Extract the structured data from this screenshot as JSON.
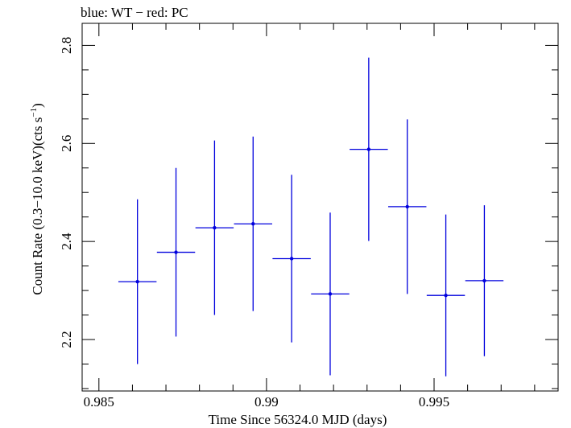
{
  "chart_data": {
    "type": "scatter",
    "title": "blue: WT − red: PC",
    "xlabel": "Time Since 56324.0 MJD (days)",
    "ylabel_main": "Count Rate (0.3−10.0 keV)(cts s",
    "ylabel_sup": "−1",
    "ylabel_end": ")",
    "xlim": [
      0.9845,
      0.9987
    ],
    "ylim": [
      2.095,
      2.845
    ],
    "x_ticks": [
      {
        "value": 0.985,
        "label": "0.985"
      },
      {
        "value": 0.99,
        "label": "0.99"
      },
      {
        "value": 0.995,
        "label": "0.995"
      }
    ],
    "x_minor_step": 0.001,
    "y_ticks": [
      {
        "value": 2.2,
        "label": "2.2"
      },
      {
        "value": 2.4,
        "label": "2.4"
      },
      {
        "value": 2.6,
        "label": "2.6"
      },
      {
        "value": 2.8,
        "label": "2.8"
      }
    ],
    "y_minor_step": 0.05,
    "series": [
      {
        "color": "#0000dd",
        "points": [
          {
            "x": 0.98615,
            "xerr": 0.00057,
            "y": 2.318,
            "yerr": 0.168
          },
          {
            "x": 0.9873,
            "xerr": 0.00057,
            "y": 2.378,
            "yerr": 0.172
          },
          {
            "x": 0.98845,
            "xerr": 0.00057,
            "y": 2.428,
            "yerr": 0.178
          },
          {
            "x": 0.9896,
            "xerr": 0.00057,
            "y": 2.436,
            "yerr": 0.178
          },
          {
            "x": 0.99075,
            "xerr": 0.00057,
            "y": 2.365,
            "yerr": 0.171
          },
          {
            "x": 0.9919,
            "xerr": 0.00057,
            "y": 2.293,
            "yerr": 0.166
          },
          {
            "x": 0.99305,
            "xerr": 0.00057,
            "y": 2.588,
            "yerr": 0.187
          },
          {
            "x": 0.9942,
            "xerr": 0.00057,
            "y": 2.471,
            "yerr": 0.178
          },
          {
            "x": 0.99535,
            "xerr": 0.00057,
            "y": 2.29,
            "yerr": 0.165
          },
          {
            "x": 0.9965,
            "xerr": 0.00057,
            "y": 2.32,
            "yerr": 0.154
          }
        ]
      }
    ]
  }
}
